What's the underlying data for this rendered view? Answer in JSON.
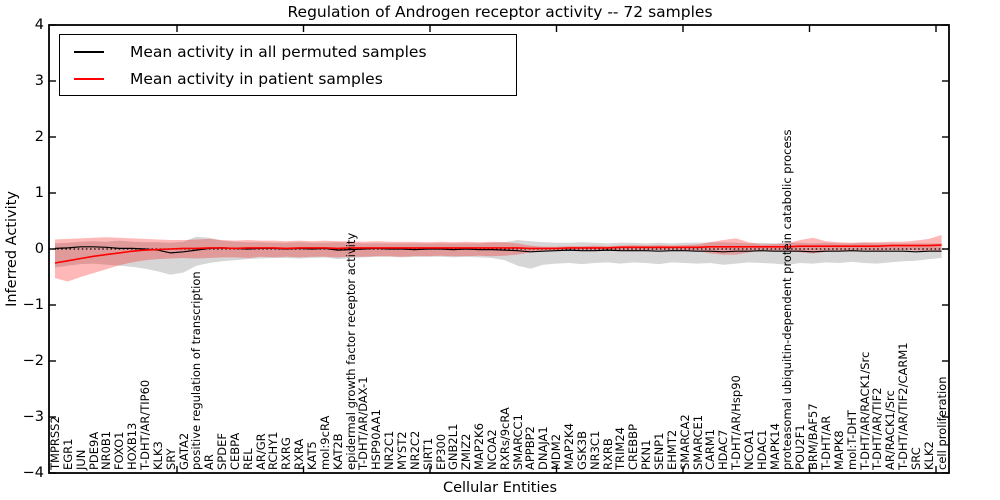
{
  "title": "Regulation of Androgen receptor activity -- 72 samples",
  "axes": {
    "ylabel": "Inferred Activity",
    "xlabel": "Cellular Entities",
    "ytick_labels": [
      "4",
      "3",
      "2",
      "1",
      "0",
      "−1",
      "−2",
      "−3",
      "−4"
    ]
  },
  "legend": {
    "items": [
      {
        "label": "Mean activity in all permuted samples",
        "color": "#000000"
      },
      {
        "label": "Mean activity in patient samples",
        "color": "#ff0000"
      }
    ]
  },
  "chart_data": {
    "type": "line",
    "title": "Regulation of Androgen receptor activity -- 72 samples",
    "xlabel": "Cellular Entities",
    "ylabel": "Inferred Activity",
    "ylim": [
      -4,
      4
    ],
    "yticks": [
      4,
      3,
      2,
      1,
      0,
      -1,
      -2,
      -3,
      -4
    ],
    "grid": false,
    "zero_line": true,
    "legend_position": "upper left",
    "categories": [
      "TMPRSS2",
      "EGR1",
      "JUN",
      "PDE9A",
      "NR0B1",
      "FOXO1",
      "HOXB13",
      "T-DHT/AR/TIP60",
      "KLK3",
      "SRY",
      "GATA2",
      "positive regulation of transcription",
      "AR",
      "SPDEF",
      "CEBPA",
      "REL",
      "AR/GR",
      "RCHY1",
      "RXRG",
      "RXRA",
      "KAT5",
      "mol:9cRA",
      "KAT2B",
      "epidermal growth factor receptor activity",
      "T-DHT/AR/DAX-1",
      "HSP90AA1",
      "NR2C1",
      "MYST2",
      "NR2C2",
      "SIRT1",
      "EP300",
      "GNB2L1",
      "ZMIZ2",
      "MAP2K6",
      "NCOA2",
      "RXRs/9cRA",
      "SMARCC1",
      "APPBP2",
      "DNAJA1",
      "MDM2",
      "MAP2K4",
      "GSK3B",
      "NR3C1",
      "RXRB",
      "TRIM24",
      "CREBBP",
      "PKN1",
      "SENP1",
      "EHMT2",
      "SMARCA2",
      "SMARCE1",
      "CARM1",
      "HDAC7",
      "T-DHT/AR/Hsp90",
      "NCOA1",
      "HDAC1",
      "MAPK14",
      "proteasomal ubiquitin-dependent protein catabolic process",
      "POU2F1",
      "BRM/BAF57",
      "T-DHT/AR",
      "MAPK8",
      "mol:T-DHT",
      "T-DHT/AR/RACK1/Src",
      "T-DHT/AR/TIF2",
      "AR/RACK1/Src",
      "T-DHT/AR/TIF2/CARM1",
      "SRC",
      "KLK2",
      "cell proliferation"
    ],
    "series": [
      {
        "name": "Mean activity in all permuted samples",
        "color": "#000000",
        "band_color": "rgba(128,128,128,0.32)",
        "values": [
          0.01,
          0.02,
          0.04,
          0.04,
          0.03,
          0.01,
          0.01,
          0.0,
          -0.02,
          -0.07,
          -0.05,
          -0.02,
          0.01,
          0.02,
          0.01,
          0.0,
          0.01,
          0.01,
          0.0,
          0.01,
          0.0,
          0.01,
          -0.02,
          -0.01,
          0.0,
          0.01,
          0.0,
          0.0,
          -0.01,
          0.0,
          0.0,
          -0.01,
          0.0,
          -0.01,
          -0.01,
          -0.02,
          -0.03,
          -0.05,
          -0.04,
          -0.03,
          -0.02,
          -0.03,
          -0.03,
          -0.02,
          -0.03,
          -0.03,
          -0.03,
          -0.04,
          -0.03,
          -0.03,
          -0.04,
          -0.04,
          -0.05,
          -0.04,
          -0.04,
          -0.03,
          -0.04,
          -0.04,
          -0.04,
          -0.05,
          -0.04,
          -0.04,
          -0.03,
          -0.04,
          -0.04,
          -0.04,
          -0.04,
          -0.05,
          -0.04,
          -0.04
        ],
        "band_upper": [
          0.1,
          0.11,
          0.13,
          0.14,
          0.13,
          0.15,
          0.13,
          0.12,
          0.12,
          0.11,
          0.13,
          0.22,
          0.2,
          0.15,
          0.13,
          0.12,
          0.12,
          0.11,
          0.11,
          0.12,
          0.11,
          0.11,
          0.12,
          0.11,
          0.1,
          0.1,
          0.1,
          0.1,
          0.1,
          0.1,
          0.1,
          0.1,
          0.1,
          0.1,
          0.11,
          0.12,
          0.16,
          0.14,
          0.12,
          0.11,
          0.11,
          0.12,
          0.11,
          0.1,
          0.11,
          0.11,
          0.1,
          0.11,
          0.1,
          0.11,
          0.11,
          0.12,
          0.12,
          0.11,
          0.1,
          0.11,
          0.1,
          0.11,
          0.11,
          0.1,
          0.11,
          0.1,
          0.1,
          0.11,
          0.1,
          0.1,
          0.1,
          0.1,
          0.1,
          0.1
        ],
        "band_lower": [
          -0.33,
          -0.3,
          -0.27,
          -0.26,
          -0.28,
          -0.3,
          -0.32,
          -0.35,
          -0.4,
          -0.46,
          -0.42,
          -0.3,
          -0.25,
          -0.22,
          -0.2,
          -0.18,
          -0.17,
          -0.16,
          -0.16,
          -0.17,
          -0.16,
          -0.15,
          -0.18,
          -0.16,
          -0.15,
          -0.14,
          -0.14,
          -0.15,
          -0.14,
          -0.14,
          -0.14,
          -0.15,
          -0.14,
          -0.15,
          -0.16,
          -0.2,
          -0.3,
          -0.35,
          -0.28,
          -0.26,
          -0.25,
          -0.27,
          -0.25,
          -0.24,
          -0.26,
          -0.24,
          -0.25,
          -0.27,
          -0.24,
          -0.25,
          -0.26,
          -0.25,
          -0.28,
          -0.26,
          -0.24,
          -0.25,
          -0.26,
          -0.28,
          -0.25,
          -0.26,
          -0.24,
          -0.25,
          -0.23,
          -0.25,
          -0.26,
          -0.24,
          -0.22,
          -0.21,
          -0.18,
          -0.16
        ]
      },
      {
        "name": "Mean activity in patient samples",
        "color": "#ff0000",
        "band_color": "rgba(255,0,0,0.28)",
        "values": [
          -0.25,
          -0.21,
          -0.17,
          -0.13,
          -0.1,
          -0.07,
          -0.04,
          -0.02,
          -0.01,
          0.0,
          0.01,
          0.01,
          0.02,
          0.02,
          0.01,
          0.02,
          0.02,
          0.02,
          0.01,
          0.02,
          0.02,
          0.02,
          0.01,
          0.02,
          0.02,
          0.02,
          0.02,
          0.02,
          0.02,
          0.02,
          0.02,
          0.02,
          0.02,
          0.02,
          0.02,
          0.02,
          0.02,
          0.01,
          0.01,
          0.01,
          0.02,
          0.02,
          0.02,
          0.02,
          0.03,
          0.03,
          0.03,
          0.03,
          0.03,
          0.03,
          0.03,
          0.04,
          0.04,
          0.04,
          0.04,
          0.04,
          0.04,
          0.04,
          0.05,
          0.05,
          0.05,
          0.05,
          0.05,
          0.05,
          0.05,
          0.06,
          0.06,
          0.06,
          0.06,
          0.07
        ],
        "band_upper": [
          0.17,
          0.18,
          0.19,
          0.2,
          0.21,
          0.2,
          0.19,
          0.18,
          0.17,
          0.16,
          0.16,
          0.17,
          0.18,
          0.16,
          0.15,
          0.16,
          0.15,
          0.15,
          0.14,
          0.15,
          0.14,
          0.15,
          0.14,
          0.14,
          0.13,
          0.14,
          0.13,
          0.13,
          0.13,
          0.12,
          0.13,
          0.12,
          0.13,
          0.12,
          0.13,
          0.12,
          0.1,
          0.06,
          0.04,
          0.04,
          0.05,
          0.05,
          0.06,
          0.05,
          0.06,
          0.07,
          0.06,
          0.07,
          0.06,
          0.07,
          0.08,
          0.12,
          0.16,
          0.19,
          0.12,
          0.08,
          0.09,
          0.1,
          0.16,
          0.2,
          0.14,
          0.12,
          0.11,
          0.12,
          0.12,
          0.13,
          0.13,
          0.15,
          0.18,
          0.25
        ],
        "band_lower": [
          -0.52,
          -0.58,
          -0.5,
          -0.43,
          -0.36,
          -0.29,
          -0.24,
          -0.2,
          -0.18,
          -0.17,
          -0.16,
          -0.17,
          -0.16,
          -0.15,
          -0.15,
          -0.16,
          -0.14,
          -0.15,
          -0.14,
          -0.15,
          -0.14,
          -0.14,
          -0.15,
          -0.14,
          -0.14,
          -0.13,
          -0.13,
          -0.14,
          -0.13,
          -0.13,
          -0.12,
          -0.13,
          -0.13,
          -0.12,
          -0.13,
          -0.12,
          -0.1,
          -0.06,
          -0.03,
          -0.02,
          -0.03,
          -0.02,
          -0.03,
          -0.02,
          -0.02,
          -0.03,
          -0.02,
          -0.02,
          -0.02,
          -0.03,
          -0.03,
          -0.08,
          -0.1,
          -0.1,
          -0.06,
          -0.02,
          -0.03,
          -0.03,
          -0.06,
          -0.08,
          -0.05,
          -0.03,
          -0.03,
          -0.02,
          -0.03,
          -0.02,
          -0.02,
          -0.03,
          -0.04,
          -0.05
        ]
      }
    ]
  }
}
